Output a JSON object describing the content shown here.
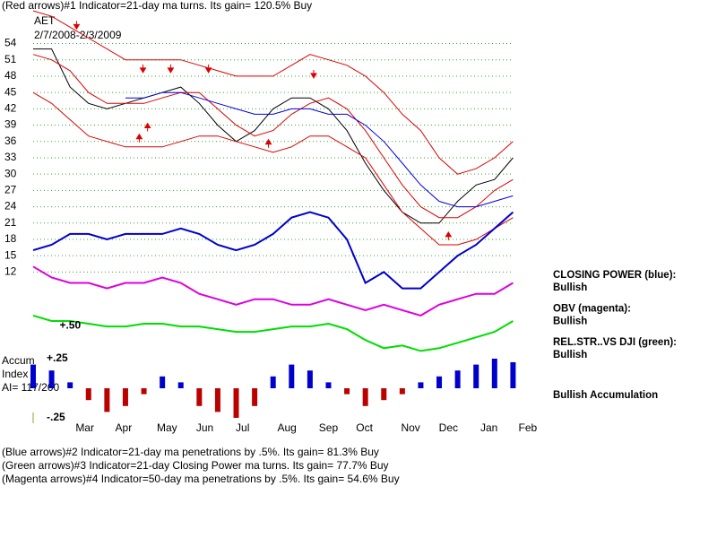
{
  "header": {
    "title": "(Red arrows)#1 Indicator=21-day ma turns. Its gain= 120.5% Buy",
    "symbol": "AET",
    "dates": "2/7/2008-2/3/2009"
  },
  "footer": [
    "(Blue arrows)#2 Indicator=21-day ma penetrations by .5%. Its gain= 81.3% Buy",
    "(Green arrows)#3 Indicator=21-day Closing Power ma turns. Its gain= 77.7% Buy",
    "(Magenta arrows)#4 Indicator=50-day ma penetrations by .5%. Its gain= 54.6% Buy"
  ],
  "chart_data": [
    {
      "type": "line",
      "x": [
        0,
        2,
        4,
        6,
        8,
        10,
        12,
        14,
        16,
        18,
        20,
        22,
        24,
        26,
        28,
        30,
        32,
        34,
        36,
        38,
        40,
        42,
        44,
        46,
        48,
        50,
        52
      ],
      "xlim": [
        0,
        54
      ],
      "xticks": [
        {
          "value": 5.6,
          "label": "Mar"
        },
        {
          "value": 9.8,
          "label": "Apr"
        },
        {
          "value": 14.5,
          "label": "May"
        },
        {
          "value": 18.6,
          "label": "Jun"
        },
        {
          "value": 22.7,
          "label": "Jul"
        },
        {
          "value": 27.5,
          "label": "Aug"
        },
        {
          "value": 32,
          "label": "Sep"
        },
        {
          "value": 35.9,
          "label": "Oct"
        },
        {
          "value": 40.9,
          "label": "Nov"
        },
        {
          "value": 45,
          "label": "Dec"
        },
        {
          "value": 49.4,
          "label": "Jan"
        },
        {
          "value": 53.6,
          "label": "Feb"
        }
      ],
      "ylim": [
        -3,
        62
      ],
      "yticks": [
        12,
        15,
        18,
        21,
        24,
        27,
        30,
        33,
        36,
        39,
        42,
        45,
        48,
        51,
        54
      ],
      "grid": true,
      "grid_color": "#33aa33",
      "series": [
        {
          "color": "#000000",
          "values": [
            53,
            53,
            46,
            43,
            42,
            43,
            44,
            45,
            46,
            43,
            39,
            36,
            38,
            42,
            44,
            44,
            42,
            38,
            32,
            27,
            23,
            21,
            21,
            25,
            28,
            29,
            33
          ]
        },
        {
          "color": "#dd0000",
          "values": [
            60,
            59,
            57,
            55,
            53,
            51,
            51,
            51,
            51,
            50,
            49,
            48,
            48,
            48,
            50,
            52,
            51,
            50,
            48,
            45,
            41,
            38,
            33,
            30,
            31,
            33,
            36
          ]
        },
        {
          "color": "#dd0000",
          "values": [
            45,
            43,
            40,
            37,
            36,
            35,
            35,
            35,
            36,
            37,
            37,
            36,
            35,
            34,
            35,
            37,
            37,
            35,
            33,
            28,
            23,
            20,
            17,
            17,
            18,
            20,
            22
          ]
        },
        {
          "color": "#dd0000",
          "values": [
            52,
            51,
            49,
            45,
            43,
            43,
            43,
            44,
            45,
            45,
            42,
            39,
            37,
            38,
            41,
            43,
            44,
            42,
            38,
            33,
            28,
            24,
            22,
            22,
            24,
            27,
            29
          ]
        },
        {
          "color": "#0000dd",
          "values": [
            null,
            null,
            null,
            null,
            null,
            44,
            44,
            45,
            45,
            44,
            43,
            42,
            41,
            41,
            42,
            42,
            41,
            41,
            39,
            36,
            32,
            28,
            25,
            24,
            24,
            25,
            26
          ]
        },
        {
          "name": "CLOSING POWER (blue):",
          "status": "Bullish",
          "color": "#0000cc",
          "width": 2,
          "values": [
            16,
            17,
            19,
            19,
            18,
            19,
            19,
            19,
            20,
            19,
            17,
            16,
            17,
            19,
            22,
            23,
            22,
            18,
            10,
            12,
            9,
            9,
            12,
            15,
            17,
            20,
            23
          ]
        },
        {
          "name": "OBV (magenta):",
          "status": "Bullish",
          "color": "#dd00dd",
          "width": 2,
          "values": [
            13,
            11,
            10,
            10,
            9,
            10,
            10,
            11,
            10,
            8,
            7,
            6,
            7,
            7,
            6,
            6,
            7,
            6,
            5,
            6,
            5,
            4,
            6,
            7,
            8,
            8,
            10
          ]
        },
        {
          "name": "REL.STR..VS DJI (green):",
          "status": "Bullish",
          "color": "#00dd00",
          "width": 2,
          "values": [
            4,
            3,
            3,
            2.5,
            2,
            2,
            2.5,
            2.5,
            2,
            2,
            1.5,
            1,
            1,
            1.5,
            2,
            2,
            2.5,
            1.5,
            -0.5,
            -2,
            -1.5,
            -2.5,
            -2,
            -1,
            0,
            1,
            3
          ]
        }
      ],
      "signals": [
        {
          "x": 4.7,
          "y": 57,
          "direction": "down"
        },
        {
          "x": 11.9,
          "y": 49,
          "direction": "down"
        },
        {
          "x": 14.9,
          "y": 49,
          "direction": "down"
        },
        {
          "x": 19,
          "y": 49,
          "direction": "down"
        },
        {
          "x": 30.4,
          "y": 48,
          "direction": "down"
        },
        {
          "x": 11.5,
          "y": 37,
          "direction": "up"
        },
        {
          "x": 12.4,
          "y": 39,
          "direction": "up"
        },
        {
          "x": 25.5,
          "y": 36,
          "direction": "up"
        },
        {
          "x": 45,
          "y": 19,
          "direction": "up"
        }
      ],
      "annotations": [
        {
          "text": "+.50",
          "x": 1.5,
          "y": 1
        }
      ]
    },
    {
      "type": "bar",
      "labels": [
        "Accum",
        "Index",
        "AI= 117/200"
      ],
      "status": "Bullish Accumulation",
      "ylim": [
        -0.28,
        0.33
      ],
      "yticks": [
        {
          "value": 0.25,
          "label": "+.25"
        },
        {
          "value": -0.25,
          "label": "-.25"
        }
      ],
      "pos_color": "#0000cc",
      "neg_color": "#bb0000",
      "x": [
        0,
        2,
        4,
        6,
        8,
        10,
        12,
        14,
        16,
        18,
        20,
        22,
        24,
        26,
        28,
        30,
        32,
        34,
        36,
        38,
        40,
        42,
        44,
        46,
        48,
        50,
        52
      ],
      "values": [
        0.2,
        0.15,
        0.05,
        -0.1,
        -0.2,
        -0.15,
        -0.05,
        0.1,
        0.05,
        -0.15,
        -0.2,
        -0.25,
        -0.15,
        0.1,
        0.2,
        0.15,
        0.05,
        -0.05,
        -0.15,
        -0.1,
        -0.05,
        0.05,
        0.1,
        0.15,
        0.2,
        0.25,
        0.22
      ]
    }
  ]
}
